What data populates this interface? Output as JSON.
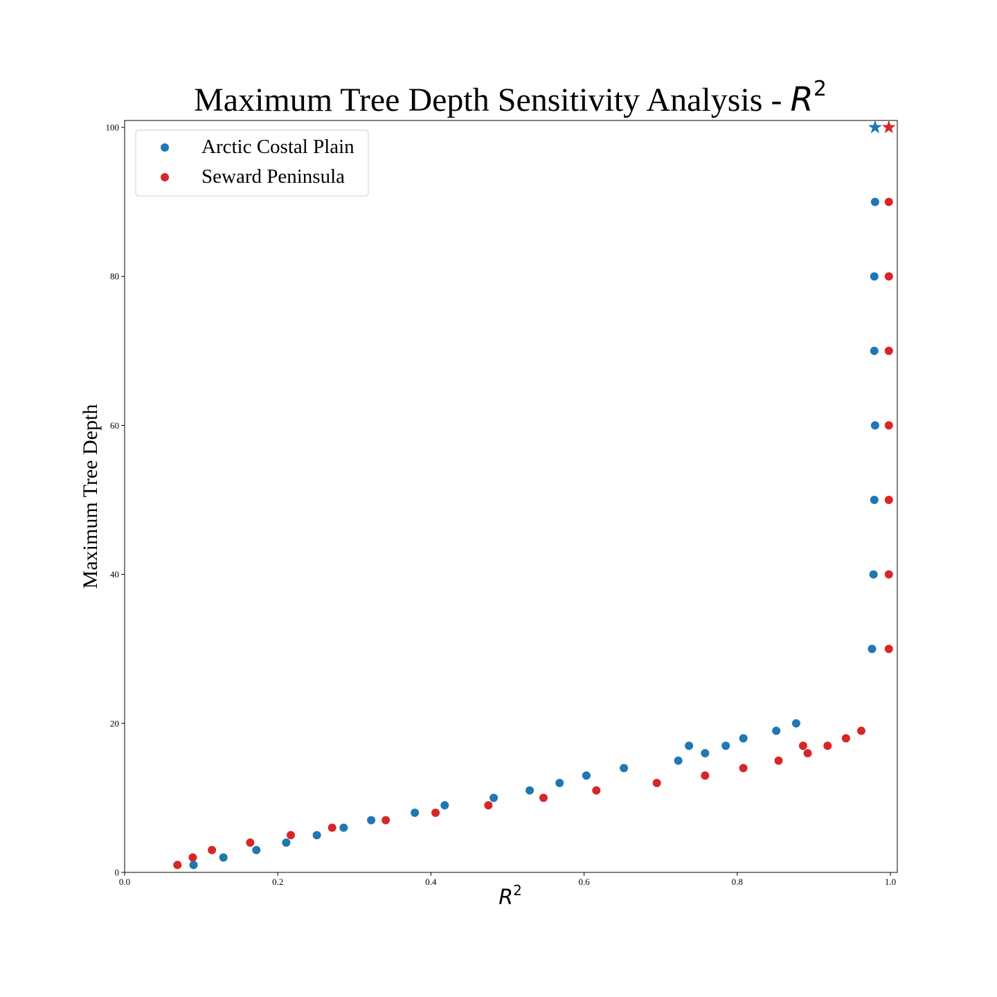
{
  "chart_data": {
    "type": "scatter",
    "title": "Maximum Tree Depth Sensitivity Analysis - ",
    "title_math": {
      "symbol": "R",
      "superscript": "2"
    },
    "xlabel_math": {
      "symbol": "R",
      "superscript": "2"
    },
    "ylabel": "Maximum Tree Depth",
    "xlim": [
      0.0,
      1.0
    ],
    "ylim": [
      0,
      100
    ],
    "xticks": [
      "0.0",
      "0.2",
      "0.4",
      "0.6",
      "0.8",
      "1.0"
    ],
    "yticks": [
      "0",
      "20",
      "40",
      "60",
      "80",
      "100"
    ],
    "grid": false,
    "legend_position": "top-left",
    "series": [
      {
        "name": "Arctic Costal Plain",
        "color": "#1f77b4",
        "marker": "circle",
        "points": [
          [
            0.09,
            1
          ],
          [
            0.129,
            2
          ],
          [
            0.172,
            3
          ],
          [
            0.211,
            4
          ],
          [
            0.251,
            5
          ],
          [
            0.286,
            6
          ],
          [
            0.322,
            7
          ],
          [
            0.379,
            8
          ],
          [
            0.418,
            9
          ],
          [
            0.482,
            10
          ],
          [
            0.529,
            11
          ],
          [
            0.568,
            12
          ],
          [
            0.603,
            13
          ],
          [
            0.652,
            14
          ],
          [
            0.723,
            15
          ],
          [
            0.758,
            16
          ],
          [
            0.737,
            17
          ],
          [
            0.785,
            17
          ],
          [
            0.808,
            18
          ],
          [
            0.851,
            19
          ],
          [
            0.877,
            20
          ],
          [
            0.976,
            30
          ],
          [
            0.978,
            40
          ],
          [
            0.979,
            50
          ],
          [
            0.98,
            60
          ],
          [
            0.979,
            70
          ],
          [
            0.979,
            80
          ],
          [
            0.98,
            90
          ]
        ],
        "best": {
          "marker": "star",
          "x": 0.98,
          "y": 100
        }
      },
      {
        "name": "Seward Peninsula",
        "color": "#d62728",
        "marker": "circle",
        "points": [
          [
            0.069,
            1
          ],
          [
            0.089,
            2
          ],
          [
            0.114,
            3
          ],
          [
            0.164,
            4
          ],
          [
            0.217,
            5
          ],
          [
            0.271,
            6
          ],
          [
            0.341,
            7
          ],
          [
            0.406,
            8
          ],
          [
            0.475,
            9
          ],
          [
            0.547,
            10
          ],
          [
            0.616,
            11
          ],
          [
            0.695,
            12
          ],
          [
            0.758,
            13
          ],
          [
            0.808,
            14
          ],
          [
            0.854,
            15
          ],
          [
            0.892,
            16
          ],
          [
            0.886,
            17
          ],
          [
            0.918,
            17
          ],
          [
            0.942,
            18
          ],
          [
            0.962,
            19
          ],
          [
            0.998,
            30
          ],
          [
            0.998,
            40
          ],
          [
            0.998,
            50
          ],
          [
            0.998,
            60
          ],
          [
            0.998,
            70
          ],
          [
            0.998,
            80
          ],
          [
            0.998,
            90
          ]
        ],
        "best": {
          "marker": "star",
          "x": 0.998,
          "y": 100
        }
      }
    ]
  }
}
